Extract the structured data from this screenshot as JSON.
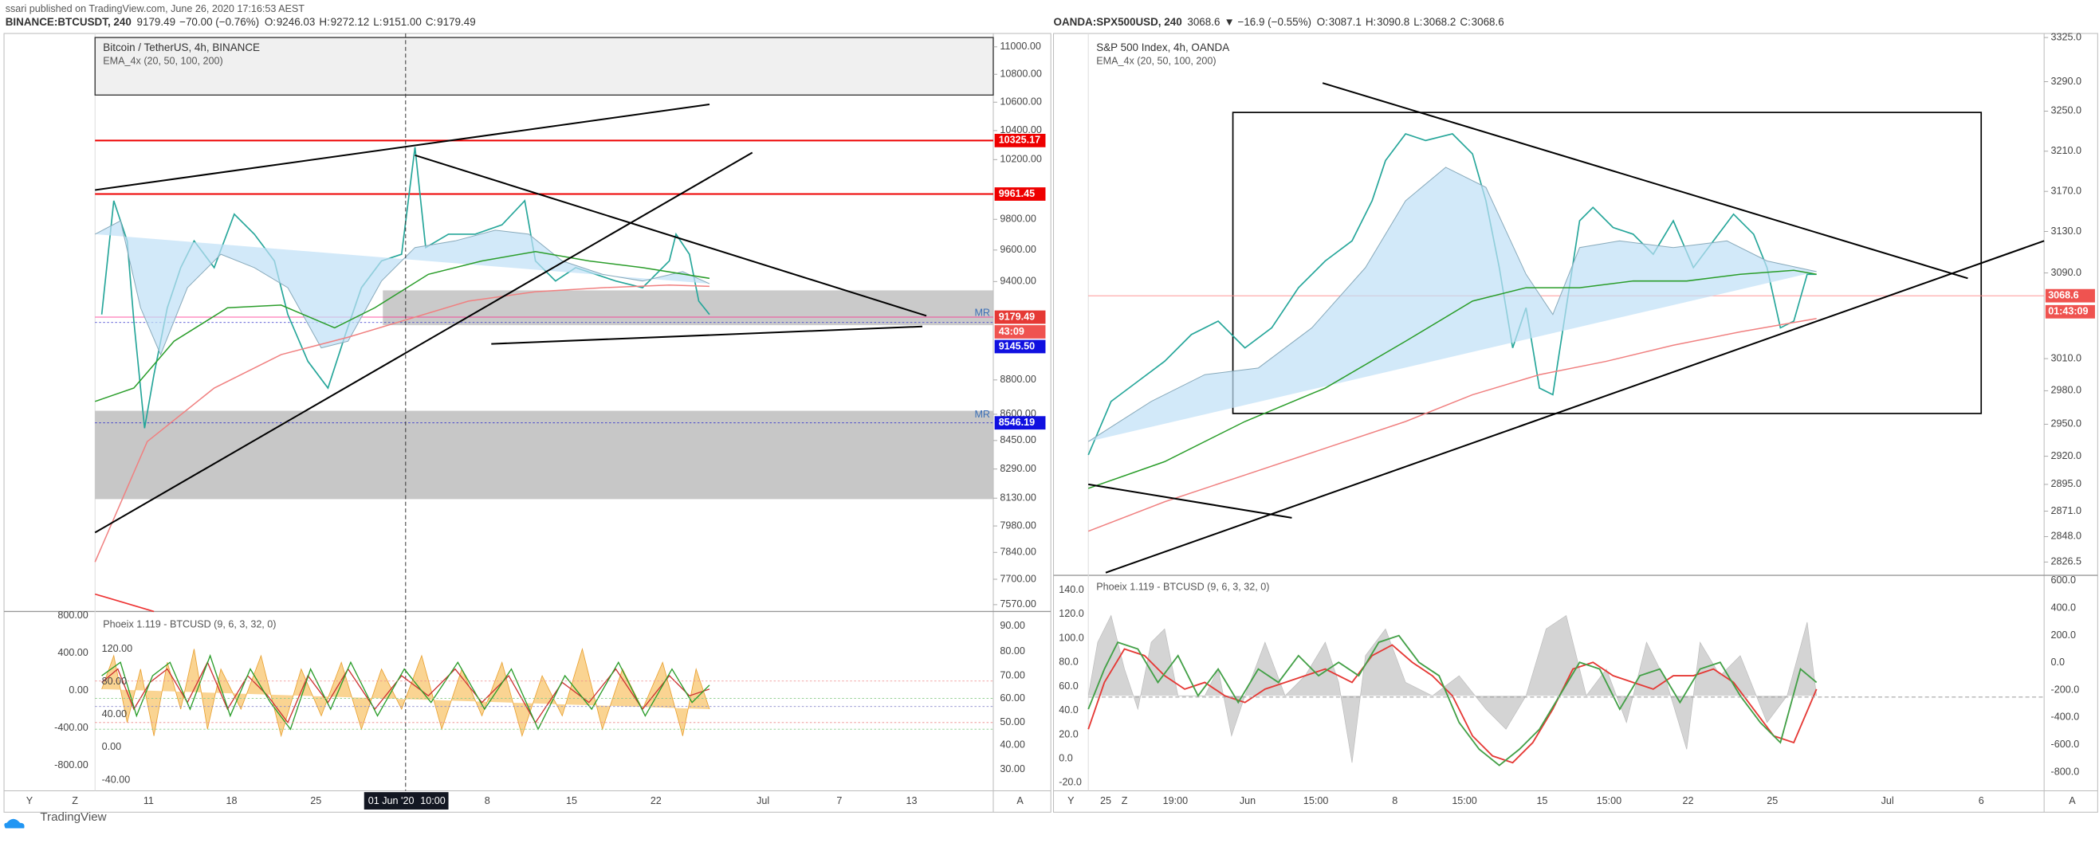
{
  "header": {
    "publisher": "ssari published on TradingView.com, June 26, 2020 17:16:53 AEST"
  },
  "left": {
    "symbol": "BINANCE:BTCUSDT, 240",
    "last": "9179.49",
    "change": "−70.00 (−0.76%)",
    "ohlc": [
      "O:",
      "9246.03",
      "H:",
      "9272.12",
      "L:",
      "9151.00",
      "C:",
      "9179.49"
    ],
    "title": "Bitcoin / TetherUS, 4h, BINANCE",
    "indicator": "EMA_4x (20, 50, 100, 200)",
    "y_labels": [
      "11000.00",
      "10800.00",
      "10600.00",
      "10400.00",
      "10200.00",
      "9800.00",
      "9600.00",
      "9400.00",
      "8800.00",
      "8600.00",
      "8450.00",
      "8290.00",
      "8130.00",
      "7980.00",
      "7840.00",
      "7700.00",
      "7570.00"
    ],
    "price_tags": [
      "10325.17",
      "9961.45",
      "9179.49",
      "43:09",
      "9145.50",
      "8546.19"
    ],
    "line_labels": [
      "MR",
      "MR"
    ],
    "osc_title": "Phoeix 1.119 - BTCUSD (9, 6, 3, 32, 0)",
    "osc_left_labels": [
      "800.00",
      "400.00",
      "0.00",
      "-400.00",
      "-800.00"
    ],
    "osc_inner_labels": [
      "120.00",
      "80.00",
      "40.00",
      "0.00",
      "-40.00"
    ],
    "osc_right_labels": [
      "90.00",
      "80.00",
      "70.00",
      "60.00",
      "50.00",
      "40.00",
      "30.00"
    ],
    "x_labels": [
      "11",
      "18",
      "25",
      "8",
      "15",
      "22",
      "Jul",
      "7",
      "13"
    ],
    "crosshair_date": "01 Jun '20",
    "crosshair_time": "10:00"
  },
  "right": {
    "symbol": "OANDA:SPX500USD, 240",
    "last": "3068.6",
    "change": "▼ −16.9 (−0.55%)",
    "ohlc": [
      "O:",
      "3087.1",
      "H:",
      "3090.8",
      "L:",
      "3068.2",
      "C:",
      "3068.6"
    ],
    "title": "S&P 500 Index, 4h, OANDA",
    "indicator": "EMA_4x (20, 50, 100, 200)",
    "y_labels": [
      "3325.0",
      "3290.0",
      "3250.0",
      "3210.0",
      "3170.0",
      "3130.0",
      "3090.0",
      "3010.0",
      "2980.0",
      "2950.0",
      "2920.0",
      "2895.0",
      "2871.0",
      "2848.0",
      "2826.5"
    ],
    "price_tags": [
      "3068.6",
      "01:43:09"
    ],
    "osc_title": "Phoeix 1.119 - BTCUSD (9, 6, 3, 32, 0)",
    "osc_left_labels": [
      "140.0",
      "120.0",
      "100.0",
      "80.0",
      "60.0",
      "40.0",
      "20.0",
      "0.0",
      "-20.0"
    ],
    "osc_right_labels": [
      "600.0",
      "400.0",
      "200.0",
      "0.0",
      "-200.0",
      "-400.0",
      "-600.0",
      "-800.0"
    ],
    "x_labels": [
      "25",
      "19:00",
      "Jun",
      "15:00",
      "8",
      "15:00",
      "15",
      "15:00",
      "22",
      "25",
      "Jul",
      "6"
    ]
  },
  "footer": {
    "brand": "TradingView",
    "buttons": [
      "Y",
      "Z",
      "A",
      "Y",
      "Z",
      "A"
    ]
  }
}
